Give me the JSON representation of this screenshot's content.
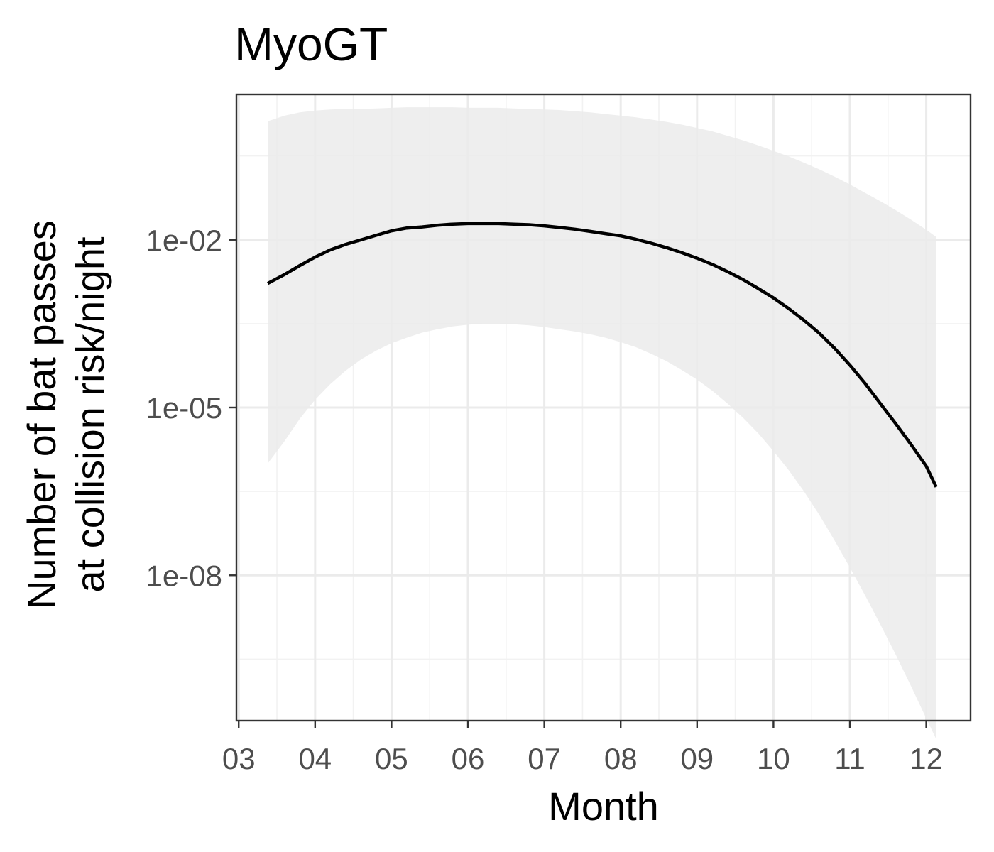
{
  "chart_data": {
    "type": "line",
    "title": "MyoGT",
    "xlabel": "Month",
    "ylabel_lines": [
      "Number of bat passes",
      "at collision risk/night"
    ],
    "x_ticks": [
      "03",
      "04",
      "05",
      "06",
      "07",
      "08",
      "09",
      "10",
      "11",
      "12"
    ],
    "xlim": [
      2.97,
      12.58
    ],
    "y_scale": "log10",
    "y_ticks": [
      "1e-02",
      "1e-05",
      "1e-08"
    ],
    "y_tick_values": [
      0.01,
      1e-05,
      1e-08
    ],
    "ylim_log10": [
      -10.6,
      0.6
    ],
    "grid": true,
    "ribbon_color": "#ebebeb",
    "line_color": "#000000",
    "series": [
      {
        "x": [
          3.38,
          3.6,
          3.8,
          4.0,
          4.2,
          4.4,
          4.6,
          4.8,
          5.0,
          5.2,
          5.4,
          5.6,
          5.8,
          6.0,
          6.2,
          6.4,
          6.6,
          6.8,
          7.0,
          7.2,
          7.4,
          7.6,
          7.8,
          8.0,
          8.2,
          8.4,
          8.6,
          8.8,
          9.0,
          9.2,
          9.4,
          9.6,
          9.8,
          10.0,
          10.2,
          10.4,
          10.6,
          10.8,
          11.0,
          11.2,
          11.4,
          11.6,
          11.8,
          12.0,
          12.13
        ],
        "y_log10": [
          -2.78,
          -2.62,
          -2.46,
          -2.31,
          -2.18,
          -2.08,
          -2.0,
          -1.92,
          -1.84,
          -1.79,
          -1.77,
          -1.74,
          -1.72,
          -1.71,
          -1.71,
          -1.71,
          -1.72,
          -1.73,
          -1.75,
          -1.78,
          -1.81,
          -1.85,
          -1.89,
          -1.93,
          -1.99,
          -2.06,
          -2.14,
          -2.23,
          -2.33,
          -2.44,
          -2.57,
          -2.71,
          -2.87,
          -3.04,
          -3.23,
          -3.44,
          -3.67,
          -3.94,
          -4.24,
          -4.57,
          -4.93,
          -5.29,
          -5.66,
          -6.05,
          -6.42
        ],
        "upper_log10": [
          0.12,
          0.22,
          0.28,
          0.31,
          0.33,
          0.34,
          0.34,
          0.35,
          0.36,
          0.37,
          0.37,
          0.37,
          0.37,
          0.36,
          0.36,
          0.36,
          0.35,
          0.34,
          0.33,
          0.32,
          0.3,
          0.28,
          0.25,
          0.22,
          0.19,
          0.15,
          0.11,
          0.06,
          0.0,
          -0.06,
          -0.14,
          -0.22,
          -0.31,
          -0.41,
          -0.51,
          -0.62,
          -0.74,
          -0.87,
          -1.01,
          -1.16,
          -1.31,
          -1.47,
          -1.64,
          -1.82,
          -1.95
        ],
        "lower_log10": [
          -6.0,
          -5.6,
          -5.2,
          -4.86,
          -4.58,
          -4.34,
          -4.14,
          -3.98,
          -3.85,
          -3.75,
          -3.66,
          -3.6,
          -3.55,
          -3.52,
          -3.5,
          -3.5,
          -3.51,
          -3.53,
          -3.56,
          -3.6,
          -3.64,
          -3.69,
          -3.75,
          -3.83,
          -3.92,
          -4.04,
          -4.17,
          -4.33,
          -4.5,
          -4.7,
          -4.93,
          -5.18,
          -5.46,
          -5.78,
          -6.12,
          -6.5,
          -6.92,
          -7.38,
          -7.86,
          -8.36,
          -8.88,
          -9.42,
          -9.98,
          -10.56,
          -10.93
        ]
      }
    ]
  }
}
